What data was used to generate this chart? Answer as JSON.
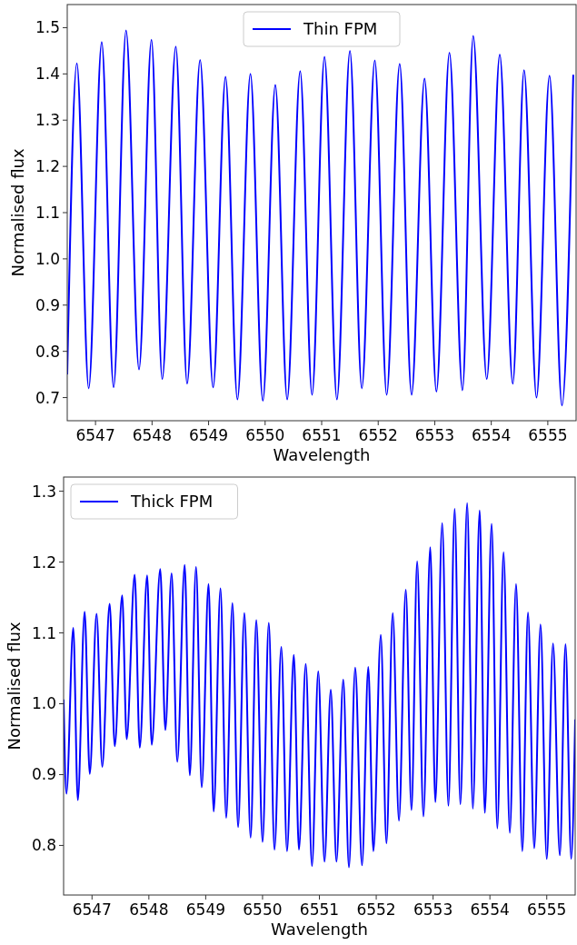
{
  "chart_data": [
    {
      "type": "line",
      "xlabel": "Wavelength",
      "ylabel": "Normalised flux",
      "legend": "top",
      "grid": false,
      "marker": "none",
      "line_style": "solid",
      "xlim": [
        6546.5,
        6555.5
      ],
      "ylim": [
        0.65,
        1.55
      ],
      "xticks": [
        6547,
        6548,
        6549,
        6550,
        6551,
        6552,
        6553,
        6554,
        6555
      ],
      "yticks": [
        0.7,
        0.8,
        0.9,
        {
          "value": 1,
          "label": "1.0"
        },
        1.1,
        1.2,
        1.3,
        1.4,
        1.5
      ],
      "x": [
        6546.5,
        6546.67,
        6546.88,
        6547.11,
        6547.32,
        6547.54,
        6547.77,
        6547.99,
        6548.18,
        6548.42,
        6548.62,
        6548.85,
        6549.08,
        6549.3,
        6549.51,
        6549.74,
        6549.96,
        6550.18,
        6550.39,
        6550.62,
        6550.83,
        6551.05,
        6551.27,
        6551.5,
        6551.71,
        6551.94,
        6552.15,
        6552.38,
        6552.59,
        6552.82,
        6553.03,
        6553.26,
        6553.49,
        6553.68,
        6553.92,
        6554.15,
        6554.38,
        6554.58,
        6554.8,
        6555.03,
        6555.25,
        6555.45
      ],
      "series": [
        {
          "name": "Thin FPM",
          "color": "#0000ff",
          "values": [
            0.75,
            1.423,
            0.72,
            1.469,
            0.722,
            1.494,
            0.761,
            1.474,
            0.74,
            1.459,
            0.73,
            1.43,
            0.722,
            1.394,
            0.696,
            1.4,
            0.693,
            1.376,
            0.696,
            1.406,
            0.706,
            1.437,
            0.696,
            1.45,
            0.72,
            1.429,
            0.706,
            1.422,
            0.706,
            1.39,
            0.713,
            1.446,
            0.716,
            1.482,
            0.74,
            1.442,
            0.73,
            1.408,
            0.7,
            1.396,
            0.683,
            1.398
          ]
        }
      ]
    },
    {
      "type": "line",
      "xlabel": "Wavelength",
      "ylabel": "Normalised flux",
      "legend": "top left",
      "grid": false,
      "marker": "none",
      "line_style": "solid",
      "xlim": [
        6546.5,
        6555.5
      ],
      "ylim": [
        0.73,
        1.32
      ],
      "xticks": [
        6547,
        6548,
        6549,
        6550,
        6551,
        6552,
        6553,
        6554,
        6555
      ],
      "yticks": [
        0.8,
        0.9,
        {
          "value": 1,
          "label": "1.0"
        },
        1.1,
        1.2,
        1.3
      ],
      "x": [
        6546.5,
        6546.55,
        6546.67,
        6546.75,
        6546.87,
        6546.96,
        6547.08,
        6547.18,
        6547.31,
        6547.4,
        6547.53,
        6547.61,
        6547.75,
        6547.84,
        6547.97,
        6548.05,
        6548.2,
        6548.29,
        6548.4,
        6548.5,
        6548.63,
        6548.72,
        6548.83,
        6548.93,
        6549.05,
        6549.14,
        6549.26,
        6549.36,
        6549.47,
        6549.57,
        6549.68,
        6549.79,
        6549.89,
        6550.0,
        6550.11,
        6550.21,
        6550.33,
        6550.43,
        6550.55,
        6550.64,
        6550.76,
        6550.87,
        6550.98,
        6551.09,
        6551.2,
        6551.3,
        6551.42,
        6551.52,
        6551.63,
        6551.75,
        6551.86,
        6551.95,
        6552.08,
        6552.18,
        6552.29,
        6552.4,
        6552.52,
        6552.62,
        6552.72,
        6552.83,
        6552.95,
        6553.04,
        6553.16,
        6553.27,
        6553.38,
        6553.48,
        6553.6,
        6553.7,
        6553.82,
        6553.91,
        6554.03,
        6554.13,
        6554.24,
        6554.35,
        6554.46,
        6554.57,
        6554.67,
        6554.78,
        6554.89,
        6555.0,
        6555.11,
        6555.23,
        6555.33,
        6555.43,
        6555.5
      ],
      "series": [
        {
          "name": "Thick FPM",
          "color": "#0000ff",
          "values": [
            1.006,
            0.873,
            1.107,
            0.864,
            1.13,
            0.901,
            1.127,
            0.911,
            1.141,
            0.94,
            1.153,
            0.95,
            1.182,
            0.938,
            1.181,
            0.942,
            1.19,
            0.963,
            1.184,
            0.918,
            1.196,
            0.899,
            1.193,
            0.882,
            1.169,
            0.848,
            1.163,
            0.839,
            1.142,
            0.826,
            1.128,
            0.811,
            1.118,
            0.805,
            1.114,
            0.794,
            1.08,
            0.792,
            1.069,
            0.794,
            1.056,
            0.771,
            1.046,
            0.777,
            1.02,
            0.777,
            1.034,
            0.769,
            1.051,
            0.772,
            1.052,
            0.792,
            1.097,
            0.803,
            1.128,
            0.835,
            1.161,
            0.85,
            1.201,
            0.841,
            1.221,
            0.861,
            1.255,
            0.856,
            1.275,
            0.858,
            1.283,
            0.852,
            1.273,
            0.846,
            1.254,
            0.824,
            1.214,
            0.818,
            1.169,
            0.792,
            1.129,
            0.796,
            1.112,
            0.781,
            1.085,
            0.786,
            1.084,
            0.781,
            0.978
          ]
        }
      ]
    }
  ]
}
